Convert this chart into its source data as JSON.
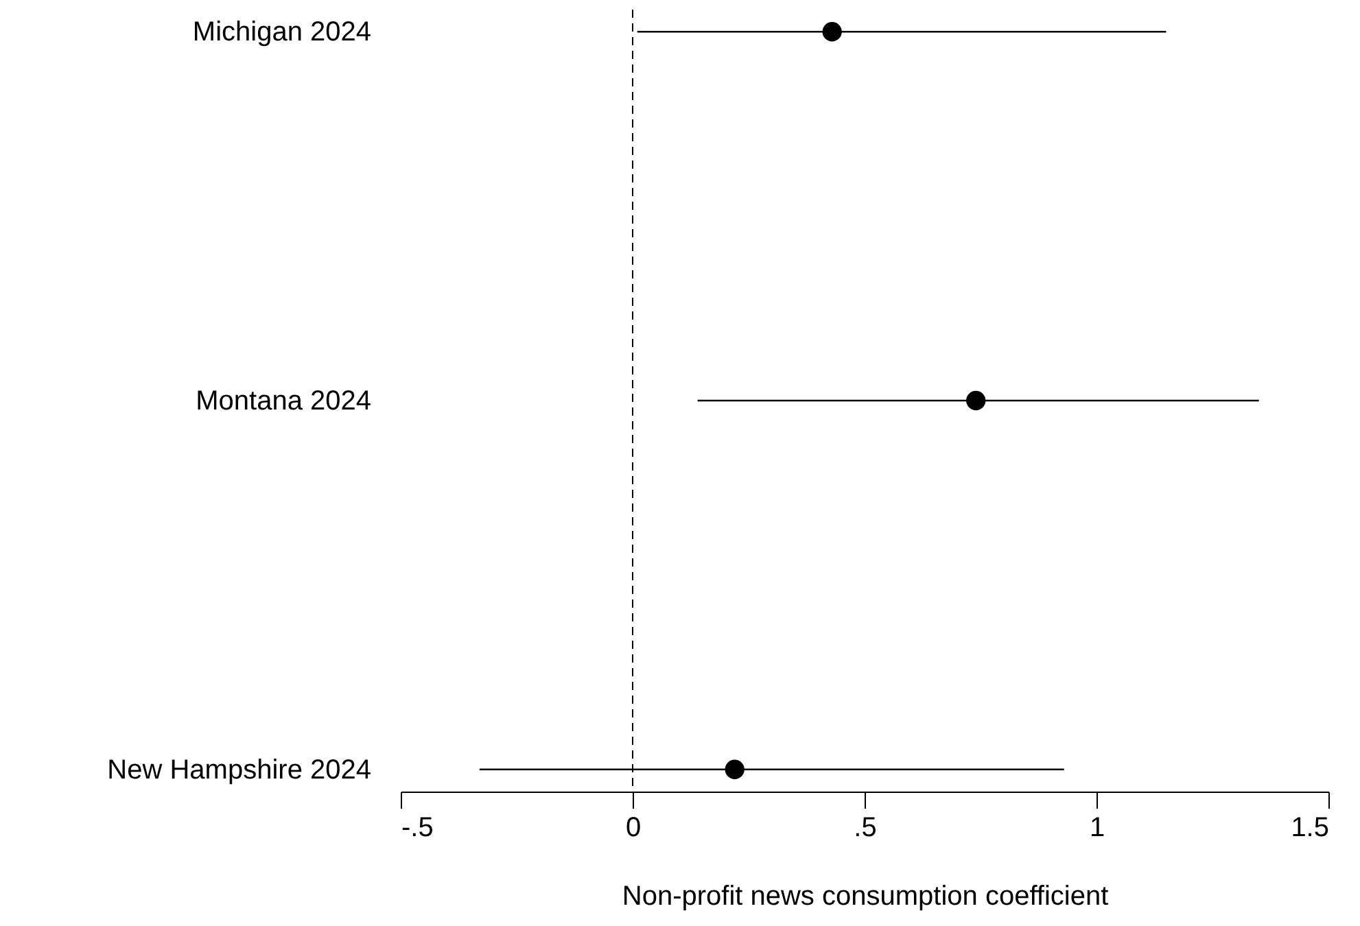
{
  "chart_data": {
    "type": "scatter",
    "orientation": "horizontal",
    "categories": [
      "Michigan 2024",
      "Montana 2024",
      "New Hampshire 2024"
    ],
    "values": [
      0.43,
      0.74,
      0.22
    ],
    "errors": [
      [
        0.01,
        1.15
      ],
      [
        0.14,
        1.35
      ],
      [
        -0.33,
        0.93
      ]
    ],
    "color": "#000000",
    "marker": "circle",
    "xlim": [
      -0.5,
      1.5
    ],
    "xticks": [
      {
        "value": -0.5,
        "label": "-.5"
      },
      0,
      {
        "value": 0.5,
        "label": ".5"
      },
      1,
      1.5
    ],
    "xlabel": "Non-profit news consumption coefficient",
    "ref_lines": [
      {
        "axis": "x",
        "value": 0,
        "line_style": "dashed",
        "color": "#000000"
      }
    ],
    "grid": false
  }
}
